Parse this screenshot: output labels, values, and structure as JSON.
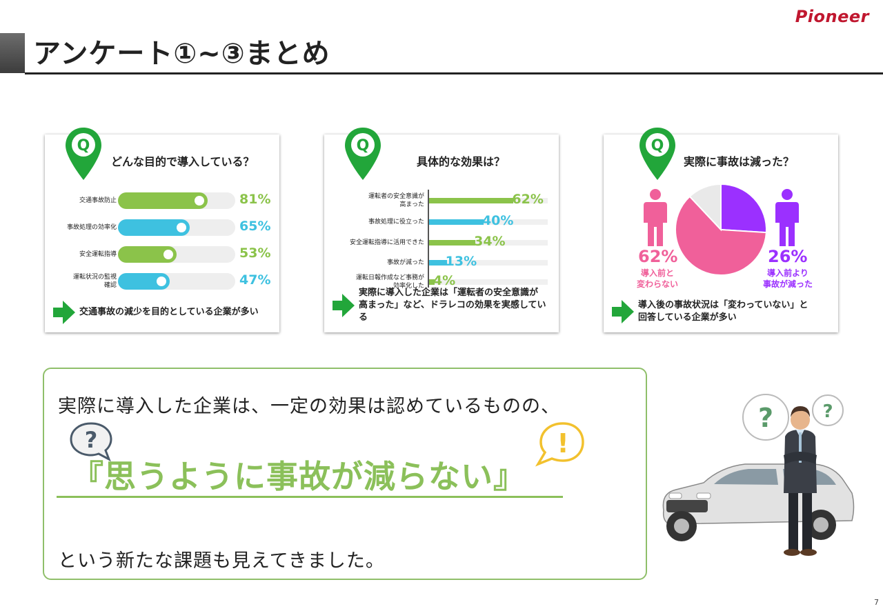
{
  "header": {
    "title": "アンケート①~③まとめ",
    "logo": "Pioneer",
    "page_number": "7"
  },
  "cards": [
    {
      "q_badge": "Q",
      "question": "どんな目的で導入している？",
      "rows": [
        {
          "label": "交通事故防止",
          "value": 81,
          "pct": "81%",
          "color": "#8bc34a"
        },
        {
          "label": "事故処理の効率化",
          "value": 65,
          "pct": "65%",
          "color": "#3ec1e0"
        },
        {
          "label": "安全運転指導",
          "value": 53,
          "pct": "53%",
          "color": "#8bc34a"
        },
        {
          "label": "運転状況の監視\n確認",
          "value": 47,
          "pct": "47%",
          "color": "#3ec1e0"
        }
      ],
      "footer": "交通事故の減少を目的としている企業が多い"
    },
    {
      "q_badge": "Q",
      "question": "具体的な効果は？",
      "rows": [
        {
          "label": "運転者の安全意識が\n高まった",
          "value": 62,
          "pct": "62%",
          "color": "#8bc34a"
        },
        {
          "label": "事故処理に役立った",
          "value": 40,
          "pct": "40%",
          "color": "#3ec1e0"
        },
        {
          "label": "安全運転指導に活用できた",
          "value": 34,
          "pct": "34%",
          "color": "#8bc34a"
        },
        {
          "label": "事故が減った",
          "value": 13,
          "pct": "13%",
          "color": "#3ec1e0"
        },
        {
          "label": "運転日報作成など事務が\n効率化した",
          "value": 4,
          "pct": "4%",
          "color": "#8bc34a"
        }
      ],
      "footer": "実際に導入した企業は「運転者の安全意識が\n高まった」など、ドラレコの効果を実感している"
    },
    {
      "q_badge": "Q",
      "question": "実際に事故は減った？",
      "left_pct": "62%",
      "left_label": "導入前と\n変わらない",
      "right_pct": "26%",
      "right_label": "導入前より\n事故が減った",
      "pie": [
        {
          "value": 26,
          "color": "#9b30ff"
        },
        {
          "value": 62,
          "color": "#f0609a"
        },
        {
          "value": 12,
          "color": "#e9e9e9"
        }
      ],
      "footer": "導入後の事故状況は「変わっていない」と\n回答している企業が多い"
    }
  ],
  "summary": {
    "line1": "実際に導入した企業は、一定の効果は認めているものの、",
    "highlight": "『思うように事故が減らない』",
    "line3": "という新たな課題も見えてきました。",
    "q_mark": "?",
    "ex_mark": "!"
  },
  "illustration": {
    "q1": "?",
    "q2": "?"
  },
  "colors": {
    "green": "#8bc05a",
    "blue": "#3ec1e0",
    "pink": "#f0609a",
    "purple": "#9b30ff",
    "pin_green": "#22a63a",
    "logo_red": "#c0172f"
  }
}
